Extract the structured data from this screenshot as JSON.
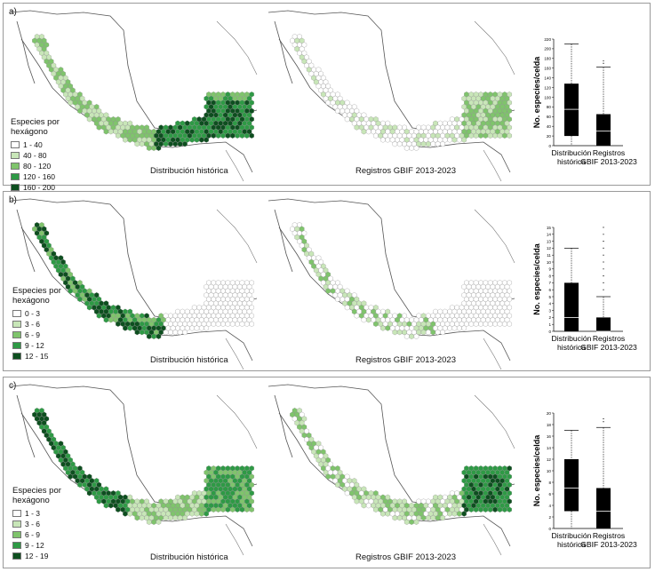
{
  "panels": [
    {
      "letter": "a)",
      "legend": {
        "title": "Especies por\nhexágono",
        "classes": [
          {
            "label": "1 - 40",
            "color": "#ffffff"
          },
          {
            "label": "40 - 80",
            "color": "#c8e6b8"
          },
          {
            "label": "80 - 120",
            "color": "#7fc46c"
          },
          {
            "label": "120 - 160",
            "color": "#2e9a45"
          },
          {
            "label": "160 - 200",
            "color": "#0d4f1f"
          }
        ]
      },
      "map_left_caption": "Distribución histórica",
      "map_right_caption": "Registros GBIF 2013-2023"
    },
    {
      "letter": "b)",
      "legend": {
        "title": "Especies por\nhexágono",
        "classes": [
          {
            "label": "0 - 3",
            "color": "#ffffff"
          },
          {
            "label": "3 - 6",
            "color": "#c8e6b8"
          },
          {
            "label": "6 - 9",
            "color": "#7fc46c"
          },
          {
            "label": "9 - 12",
            "color": "#2e9a45"
          },
          {
            "label": "12 - 15",
            "color": "#0d4f1f"
          }
        ]
      },
      "map_left_caption": "Distribución histórica",
      "map_right_caption": "Registros GBIF 2013-2023"
    },
    {
      "letter": "c)",
      "legend": {
        "title": "Especies por\nhexágono",
        "classes": [
          {
            "label": "1 - 3",
            "color": "#ffffff"
          },
          {
            "label": "3 - 6",
            "color": "#c8e6b8"
          },
          {
            "label": "6 - 9",
            "color": "#7fc46c"
          },
          {
            "label": "9 - 12",
            "color": "#2e9a45"
          },
          {
            "label": "12 - 19",
            "color": "#0d4f1f"
          }
        ]
      },
      "map_left_caption": "Distribución histórica",
      "map_right_caption": "Registros GBIF 2013-2023"
    }
  ],
  "chart_data": [
    {
      "type": "boxplot",
      "ylabel": "No. especies/celda",
      "categories": [
        "Distribución\nhistórica",
        "Registros\nGBIF 2013-2023"
      ],
      "yticks": [
        "0",
        "20",
        "40",
        "60",
        "80",
        "100",
        "120",
        "140",
        "160",
        "180",
        "200",
        "220"
      ],
      "ylim": [
        0,
        220
      ],
      "boxes": [
        {
          "whisker_low": 0,
          "q1": 20,
          "median": 75,
          "q3": 128,
          "whisker_high": 210,
          "outliers": []
        },
        {
          "whisker_low": 0,
          "q1": 0,
          "median": 30,
          "q3": 65,
          "whisker_high": 162,
          "outliers": [
            170,
            175
          ]
        }
      ]
    },
    {
      "type": "boxplot",
      "ylabel": "No. especies/celda",
      "categories": [
        "Distribución\nhistórica",
        "Registros\nGBIF 2013-2023"
      ],
      "yticks": [
        "0",
        "1",
        "2",
        "3",
        "4",
        "5",
        "6",
        "7",
        "8",
        "9",
        "10",
        "11",
        "12",
        "13",
        "14",
        "15"
      ],
      "ylim": [
        0,
        15
      ],
      "boxes": [
        {
          "whisker_low": 0,
          "q1": 0,
          "median": 2,
          "q3": 7,
          "whisker_high": 12,
          "outliers": []
        },
        {
          "whisker_low": 0,
          "q1": 0,
          "median": 0,
          "q3": 2,
          "whisker_high": 5,
          "outliers": [
            6,
            7,
            8,
            9,
            10,
            11,
            12,
            13,
            14,
            15
          ]
        }
      ]
    },
    {
      "type": "boxplot",
      "ylabel": "No. especies/celda",
      "categories": [
        "Distribución\nhistórica",
        "Registros\nGBIF 2013-2023"
      ],
      "yticks": [
        "0",
        "2",
        "4",
        "6",
        "8",
        "10",
        "12",
        "14",
        "16",
        "18",
        "20"
      ],
      "ylim": [
        0,
        20
      ],
      "boxes": [
        {
          "whisker_low": 0,
          "q1": 3,
          "median": 7,
          "q3": 12,
          "whisker_high": 17,
          "outliers": []
        },
        {
          "whisker_low": 0,
          "q1": 0,
          "median": 3,
          "q3": 7,
          "whisker_high": 17.5,
          "outliers": [
            18.5,
            19
          ]
        }
      ]
    }
  ]
}
